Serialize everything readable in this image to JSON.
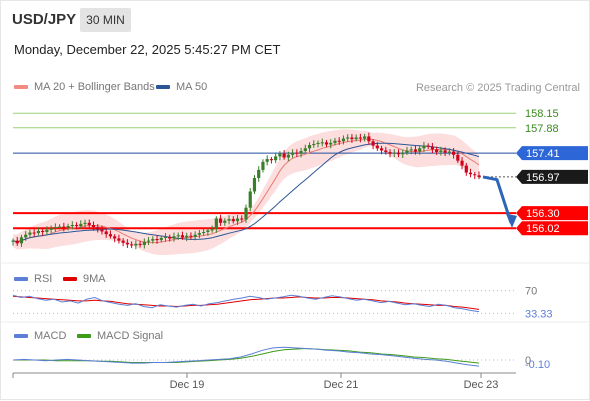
{
  "header": {
    "symbol": "USD/JPY",
    "timeframe": "30 MIN",
    "datetime": "Monday, December 22, 2025 5:45:27 PM CET",
    "credit": "Research © 2025 Trading Central"
  },
  "legend_main": [
    {
      "label": "MA 20 + Bollinger Bands",
      "color": "#f28b82"
    },
    {
      "label": "MA 50",
      "color": "#2b5797"
    }
  ],
  "legend_rsi": [
    {
      "label": "RSI",
      "color": "#5b7fd6"
    },
    {
      "label": "9MA",
      "color": "#e00000"
    }
  ],
  "legend_macd": [
    {
      "label": "MACD",
      "color": "#5b7fd6"
    },
    {
      "label": "MACD Signal",
      "color": "#3d9a1a"
    }
  ],
  "colors": {
    "candle_up": "#3a7d2a",
    "candle_down": "#d0021b",
    "resistance": "#9ad17a",
    "pivot": "#1f4e9c",
    "support": "#ff0000",
    "arrow": "#2d66b8",
    "bollinger": "#fbd3d3"
  },
  "chart_data": [
    {
      "type": "candlestick",
      "series": [
        {
          "name": "USD/JPY"
        }
      ],
      "x_ticks": [
        "Dec 19",
        "Dec 21",
        "Dec 23"
      ],
      "ylim": [
        155.45,
        158.45
      ],
      "levels": [
        {
          "value": 158.15,
          "label": "158.15",
          "kind": "resistance"
        },
        {
          "value": 157.88,
          "label": "157.88",
          "kind": "resistance"
        },
        {
          "value": 157.41,
          "label": "157.41",
          "kind": "pivot"
        },
        {
          "value": 156.97,
          "label": "156.97",
          "kind": "last"
        },
        {
          "value": 156.3,
          "label": "156.30",
          "kind": "support"
        },
        {
          "value": 156.02,
          "label": "156.02",
          "kind": "support"
        }
      ],
      "close": [
        155.79,
        155.74,
        155.85,
        155.9,
        155.94,
        155.93,
        155.97,
        155.95,
        155.99,
        156.02,
        156.04,
        156.05,
        156.03,
        156.06,
        156.08,
        156.06,
        156.1,
        156.12,
        156.08,
        156.04,
        156.0,
        155.96,
        155.91,
        155.87,
        155.83,
        155.79,
        155.75,
        155.72,
        155.7,
        155.73,
        155.71,
        155.77,
        155.79,
        155.82,
        155.8,
        155.84,
        155.86,
        155.83,
        155.87,
        155.89,
        155.85,
        155.88,
        155.86,
        155.9,
        155.93,
        155.95,
        155.98,
        156.0,
        156.2,
        156.12,
        156.16,
        156.19,
        156.15,
        156.2,
        156.18,
        156.4,
        156.7,
        156.95,
        157.1,
        157.25,
        157.3,
        157.28,
        157.35,
        157.4,
        157.33,
        157.38,
        157.42,
        157.4,
        157.45,
        157.5,
        157.56,
        157.58,
        157.6,
        157.61,
        157.57,
        157.6,
        157.64,
        157.63,
        157.68,
        157.7,
        157.67,
        157.7,
        157.68,
        157.72,
        157.63,
        157.55,
        157.5,
        157.46,
        157.43,
        157.4,
        157.42,
        157.39,
        157.42,
        157.46,
        157.48,
        157.44,
        157.5,
        157.55,
        157.53,
        157.48,
        157.43,
        157.46,
        157.42,
        157.44,
        157.38,
        157.27,
        157.18,
        157.05,
        157.02,
        157.0,
        156.97
      ],
      "ma20_start": 155.9,
      "ma20_end": 157.39,
      "ma50_start": 155.8,
      "ma50_end": 157.46
    },
    {
      "type": "line",
      "title": "RSI",
      "ticks": [
        "70",
        "33.33"
      ],
      "levels": [
        70,
        30
      ],
      "last_value": 33.33,
      "ylim": [
        20,
        80
      ],
      "series": [
        {
          "name": "RSI",
          "values": [
            62,
            58,
            60,
            56,
            53,
            55,
            50,
            52,
            48,
            55,
            58,
            52,
            49,
            46,
            44,
            47,
            42,
            40,
            45,
            43,
            41,
            44,
            46,
            43,
            47,
            49,
            52,
            55,
            57,
            60,
            58,
            55,
            57,
            59,
            62,
            60,
            57,
            55,
            58,
            61,
            59,
            56,
            53,
            55,
            52,
            49,
            51,
            48,
            45,
            47,
            44,
            42,
            46,
            44,
            40,
            38,
            35,
            33
          ]
        },
        {
          "name": "9MA",
          "values": [
            60,
            59,
            58,
            57,
            56,
            55,
            54,
            53,
            52,
            52,
            53,
            52,
            51,
            49,
            47,
            46,
            45,
            44,
            43,
            43,
            42,
            43,
            44,
            44,
            45,
            46,
            48,
            50,
            52,
            54,
            55,
            56,
            57,
            57,
            58,
            59,
            58,
            57,
            57,
            58,
            58,
            57,
            56,
            55,
            54,
            52,
            51,
            50,
            48,
            47,
            46,
            45,
            44,
            44,
            42,
            41,
            39,
            37
          ]
        }
      ]
    },
    {
      "type": "line",
      "title": "MACD",
      "ticks": [
        "0",
        "-0.10"
      ],
      "last_value": -0.1,
      "ylim": [
        -0.18,
        0.28
      ],
      "series": [
        {
          "name": "MACD",
          "values": [
            0.0,
            0.01,
            0.0,
            -0.01,
            0.0,
            0.01,
            0.0,
            -0.01,
            -0.02,
            -0.03,
            -0.04,
            -0.05,
            -0.05,
            -0.04,
            -0.04,
            -0.03,
            -0.02,
            -0.01,
            0.0,
            0.01,
            0.02,
            0.05,
            0.1,
            0.16,
            0.2,
            0.21,
            0.2,
            0.19,
            0.18,
            0.16,
            0.15,
            0.13,
            0.12,
            0.1,
            0.09,
            0.07,
            0.05,
            0.03,
            0.01,
            0.0,
            -0.02,
            -0.05,
            -0.08,
            -0.1
          ]
        },
        {
          "name": "MACD Signal",
          "values": [
            0.0,
            0.0,
            0.0,
            0.0,
            -0.01,
            -0.01,
            -0.01,
            -0.01,
            -0.02,
            -0.02,
            -0.03,
            -0.04,
            -0.04,
            -0.04,
            -0.04,
            -0.04,
            -0.03,
            -0.02,
            -0.01,
            0.0,
            0.01,
            0.03,
            0.06,
            0.1,
            0.14,
            0.17,
            0.18,
            0.19,
            0.18,
            0.17,
            0.16,
            0.15,
            0.13,
            0.12,
            0.1,
            0.09,
            0.07,
            0.05,
            0.04,
            0.02,
            0.01,
            -0.01,
            -0.03,
            -0.05
          ]
        }
      ]
    }
  ]
}
